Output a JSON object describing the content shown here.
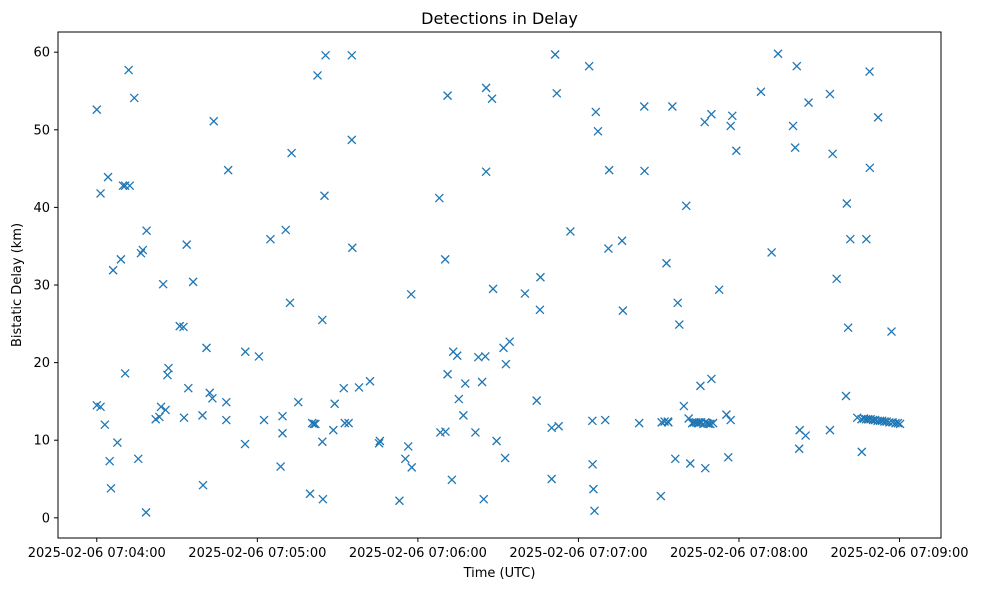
{
  "chart_data": {
    "type": "scatter",
    "title": "Detections in Delay",
    "xlabel": "Time (UTC)",
    "ylabel": "Bistatic Delay (km)",
    "x_unit": "seconds after 2025-02-06 07:04:00 UTC",
    "xlim": [
      -14.5,
      315.5
    ],
    "ylim": [
      -2.6,
      62.6
    ],
    "xticks": [
      {
        "value": 0,
        "label": "2025-02-06 07:04:00"
      },
      {
        "value": 60,
        "label": "2025-02-06 07:05:00"
      },
      {
        "value": 120,
        "label": "2025-02-06 07:06:00"
      },
      {
        "value": 180,
        "label": "2025-02-06 07:07:00"
      },
      {
        "value": 240,
        "label": "2025-02-06 07:08:00"
      },
      {
        "value": 300,
        "label": "2025-02-06 07:09:00"
      }
    ],
    "yticks": [
      0,
      10,
      20,
      30,
      40,
      50,
      60
    ],
    "grid": false,
    "marker": "x",
    "color": "#1f77b4",
    "series": [
      {
        "points": [
          [
            0.0,
            52.6
          ],
          [
            0.0,
            14.5
          ],
          [
            1.4,
            14.3
          ],
          [
            1.4,
            41.8
          ],
          [
            3.0,
            12.0
          ],
          [
            4.2,
            43.9
          ],
          [
            4.8,
            7.3
          ],
          [
            5.3,
            3.8
          ],
          [
            6.1,
            31.9
          ],
          [
            7.7,
            9.7
          ],
          [
            9.0,
            33.3
          ],
          [
            9.8,
            42.8
          ],
          [
            10.6,
            42.8
          ],
          [
            10.6,
            18.6
          ],
          [
            11.9,
            57.7
          ],
          [
            12.3,
            42.8
          ],
          [
            14.0,
            54.1
          ],
          [
            15.5,
            7.6
          ],
          [
            16.5,
            34.1
          ],
          [
            17.2,
            34.5
          ],
          [
            18.4,
            0.7
          ],
          [
            18.6,
            37.0
          ],
          [
            22.0,
            12.7
          ],
          [
            23.4,
            13.0
          ],
          [
            24.0,
            14.3
          ],
          [
            24.8,
            30.1
          ],
          [
            25.7,
            13.9
          ],
          [
            26.4,
            18.4
          ],
          [
            26.8,
            19.3
          ],
          [
            31.0,
            24.7
          ],
          [
            32.4,
            24.6
          ],
          [
            32.6,
            12.9
          ],
          [
            33.6,
            35.2
          ],
          [
            34.2,
            16.7
          ],
          [
            36.0,
            30.4
          ],
          [
            39.5,
            13.2
          ],
          [
            39.7,
            4.2
          ],
          [
            41.0,
            21.9
          ],
          [
            42.2,
            16.1
          ],
          [
            43.2,
            15.4
          ],
          [
            43.7,
            51.1
          ],
          [
            48.4,
            14.9
          ],
          [
            48.4,
            12.6
          ],
          [
            49.1,
            44.8
          ],
          [
            55.4,
            9.5
          ],
          [
            55.5,
            21.4
          ],
          [
            60.6,
            20.8
          ],
          [
            62.5,
            12.6
          ],
          [
            64.9,
            35.9
          ],
          [
            68.7,
            6.6
          ],
          [
            69.4,
            10.9
          ],
          [
            69.4,
            13.1
          ],
          [
            70.6,
            37.1
          ],
          [
            72.2,
            27.7
          ],
          [
            72.8,
            47.0
          ],
          [
            75.3,
            14.9
          ],
          [
            79.7,
            3.1
          ],
          [
            80.5,
            12.2
          ],
          [
            81.1,
            12.1
          ],
          [
            81.7,
            12.1
          ],
          [
            82.5,
            57.0
          ],
          [
            84.3,
            25.5
          ],
          [
            84.3,
            9.8
          ],
          [
            84.5,
            2.4
          ],
          [
            85.1,
            41.5
          ],
          [
            85.5,
            59.6
          ],
          [
            88.4,
            11.3
          ],
          [
            88.9,
            14.7
          ],
          [
            92.3,
            16.7
          ],
          [
            92.7,
            12.2
          ],
          [
            94.1,
            12.2
          ],
          [
            95.3,
            59.6
          ],
          [
            95.3,
            48.7
          ],
          [
            95.5,
            34.8
          ],
          [
            98.0,
            16.8
          ],
          [
            102.1,
            17.6
          ],
          [
            105.5,
            9.6
          ],
          [
            105.8,
            9.9
          ],
          [
            113.1,
            2.2
          ],
          [
            115.3,
            7.6
          ],
          [
            116.4,
            9.2
          ],
          [
            117.5,
            28.8
          ],
          [
            117.7,
            6.5
          ],
          [
            128.0,
            41.2
          ],
          [
            128.4,
            11.0
          ],
          [
            130.2,
            33.3
          ],
          [
            130.3,
            11.1
          ],
          [
            131.1,
            54.4
          ],
          [
            131.1,
            18.5
          ],
          [
            132.7,
            4.9
          ],
          [
            133.2,
            21.4
          ],
          [
            134.7,
            20.9
          ],
          [
            135.3,
            15.3
          ],
          [
            137.0,
            13.2
          ],
          [
            137.7,
            17.3
          ],
          [
            141.5,
            11.0
          ],
          [
            142.6,
            20.7
          ],
          [
            144.0,
            17.5
          ],
          [
            144.6,
            2.4
          ],
          [
            145.2,
            20.8
          ],
          [
            145.5,
            55.4
          ],
          [
            145.5,
            44.6
          ],
          [
            147.7,
            54.0
          ],
          [
            148.1,
            29.5
          ],
          [
            149.4,
            9.9
          ],
          [
            152.0,
            21.9
          ],
          [
            152.6,
            7.7
          ],
          [
            152.9,
            19.8
          ],
          [
            154.3,
            22.7
          ],
          [
            160.0,
            28.9
          ],
          [
            164.4,
            15.1
          ],
          [
            165.6,
            26.8
          ],
          [
            165.8,
            31.0
          ],
          [
            170.0,
            11.6
          ],
          [
            170.0,
            5.0
          ],
          [
            171.3,
            59.7
          ],
          [
            171.9,
            54.7
          ],
          [
            172.6,
            11.8
          ],
          [
            177.0,
            36.9
          ],
          [
            184.0,
            58.2
          ],
          [
            185.2,
            12.5
          ],
          [
            185.3,
            6.9
          ],
          [
            185.6,
            3.7
          ],
          [
            186.0,
            0.9
          ],
          [
            186.5,
            52.3
          ],
          [
            187.3,
            49.8
          ],
          [
            190.0,
            12.6
          ],
          [
            191.2,
            34.7
          ],
          [
            191.5,
            44.8
          ],
          [
            196.3,
            35.7
          ],
          [
            196.6,
            26.7
          ],
          [
            202.7,
            12.2
          ],
          [
            204.6,
            53.0
          ],
          [
            204.7,
            44.7
          ],
          [
            210.8,
            2.8
          ],
          [
            211.1,
            12.3
          ],
          [
            212.2,
            12.4
          ],
          [
            212.9,
            32.8
          ],
          [
            213.4,
            12.4
          ],
          [
            213.6,
            12.3
          ],
          [
            215.1,
            53.0
          ],
          [
            216.2,
            7.6
          ],
          [
            217.1,
            27.7
          ],
          [
            217.7,
            24.9
          ],
          [
            219.4,
            14.4
          ],
          [
            220.3,
            40.2
          ],
          [
            221.2,
            12.8
          ],
          [
            221.8,
            7.0
          ],
          [
            222.5,
            12.2
          ],
          [
            223.3,
            12.3
          ],
          [
            224.0,
            12.3
          ],
          [
            224.6,
            12.2
          ],
          [
            225.2,
            12.3
          ],
          [
            225.6,
            17.0
          ],
          [
            225.9,
            12.3
          ],
          [
            226.7,
            12.1
          ],
          [
            227.2,
            51.0
          ],
          [
            227.4,
            12.3
          ],
          [
            227.4,
            6.4
          ],
          [
            228.1,
            12.2
          ],
          [
            228.6,
            12.1
          ],
          [
            229.3,
            12.1
          ],
          [
            229.7,
            52.0
          ],
          [
            229.7,
            17.9
          ],
          [
            230.3,
            12.2
          ],
          [
            232.6,
            29.4
          ],
          [
            235.3,
            13.3
          ],
          [
            236.0,
            7.8
          ],
          [
            236.9,
            50.5
          ],
          [
            236.9,
            12.6
          ],
          [
            237.5,
            51.8
          ],
          [
            239.0,
            47.3
          ],
          [
            248.2,
            54.9
          ],
          [
            252.2,
            34.2
          ],
          [
            254.6,
            59.8
          ],
          [
            260.2,
            50.5
          ],
          [
            261.0,
            47.7
          ],
          [
            261.6,
            58.2
          ],
          [
            262.5,
            8.9
          ],
          [
            262.7,
            11.3
          ],
          [
            264.9,
            10.6
          ],
          [
            266.0,
            53.5
          ],
          [
            274.0,
            54.6
          ],
          [
            274.0,
            11.3
          ],
          [
            275.0,
            46.9
          ],
          [
            276.5,
            30.8
          ],
          [
            280.0,
            15.7
          ],
          [
            280.3,
            40.5
          ],
          [
            280.8,
            24.5
          ],
          [
            281.6,
            35.9
          ],
          [
            284.2,
            12.9
          ],
          [
            285.8,
            12.7
          ],
          [
            285.9,
            8.5
          ],
          [
            286.7,
            12.8
          ],
          [
            287.5,
            12.7
          ],
          [
            287.6,
            35.9
          ],
          [
            288.3,
            12.7
          ],
          [
            288.8,
            57.5
          ],
          [
            288.9,
            45.1
          ],
          [
            289.2,
            12.7
          ],
          [
            290.1,
            12.6
          ],
          [
            290.9,
            12.6
          ],
          [
            291.8,
            12.5
          ],
          [
            292.0,
            51.6
          ],
          [
            292.7,
            12.5
          ],
          [
            293.5,
            12.5
          ],
          [
            294.4,
            12.4
          ],
          [
            295.2,
            12.4
          ],
          [
            296.2,
            12.3
          ],
          [
            297.0,
            24.0
          ],
          [
            297.4,
            12.3
          ],
          [
            298.5,
            12.2
          ],
          [
            299.4,
            12.2
          ],
          [
            300.2,
            12.1
          ]
        ]
      }
    ]
  }
}
